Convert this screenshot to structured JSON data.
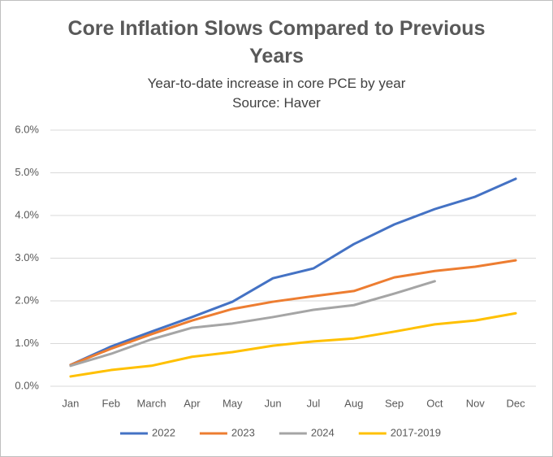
{
  "chart_data": {
    "type": "line",
    "title": "Core Inflation Slows Compared to Previous Years",
    "subtitle": "Year-to-date increase in core PCE by year",
    "source": "Source: Haver",
    "categories": [
      "Jan",
      "Feb",
      "March",
      "Apr",
      "May",
      "Jun",
      "Jul",
      "Aug",
      "Sep",
      "Oct",
      "Nov",
      "Dec"
    ],
    "series": [
      {
        "name": "2022",
        "color": "#4472c4",
        "values": [
          0.5,
          0.93,
          1.28,
          1.62,
          1.98,
          2.53,
          2.76,
          3.33,
          3.79,
          4.15,
          4.44,
          4.86
        ]
      },
      {
        "name": "2023",
        "color": "#ed7d31",
        "values": [
          0.5,
          0.88,
          1.22,
          1.54,
          1.81,
          1.98,
          2.11,
          2.23,
          2.55,
          2.7,
          2.8,
          2.95
        ]
      },
      {
        "name": "2024",
        "color": "#a5a5a5",
        "values": [
          0.48,
          0.76,
          1.1,
          1.37,
          1.47,
          1.62,
          1.79,
          1.9,
          2.17,
          2.46,
          null,
          null
        ]
      },
      {
        "name": "2017-2019",
        "color": "#ffc000",
        "values": [
          0.23,
          0.38,
          0.48,
          0.69,
          0.8,
          0.95,
          1.05,
          1.12,
          1.28,
          1.45,
          1.54,
          1.71
        ]
      }
    ],
    "ylim": [
      0,
      6
    ],
    "yticks": [
      {
        "value": 0,
        "label": "0.0%"
      },
      {
        "value": 1,
        "label": "1.0%"
      },
      {
        "value": 2,
        "label": "2.0%"
      },
      {
        "value": 3,
        "label": "3.0%"
      },
      {
        "value": 4,
        "label": "4.0%"
      },
      {
        "value": 5,
        "label": "5.0%"
      },
      {
        "value": 6,
        "label": "6.0%"
      }
    ],
    "grid": true,
    "legend": "bottom"
  }
}
